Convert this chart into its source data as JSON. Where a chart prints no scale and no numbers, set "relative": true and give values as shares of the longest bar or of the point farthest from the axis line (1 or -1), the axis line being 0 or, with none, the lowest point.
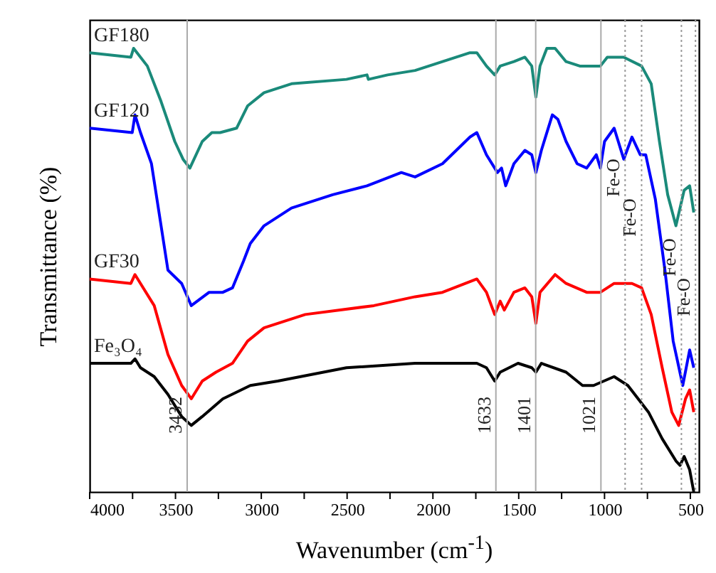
{
  "chart_data": {
    "type": "line",
    "relative": true,
    "xlabel": "Wavenumber (cm$^{-1}$)",
    "ylabel": "Transmittance (%)",
    "xlim": [
      4000,
      450
    ],
    "xticks": [
      4000,
      {
        "value": 3750,
        "label": null
      },
      3500,
      {
        "value": 3250,
        "label": null
      },
      3000,
      {
        "value": 2750,
        "label": null
      },
      2500,
      {
        "value": 2250,
        "label": null
      },
      2000,
      {
        "value": 1750,
        "label": null
      },
      1500,
      {
        "value": 1250,
        "label": null
      },
      1000,
      {
        "value": 750,
        "label": null
      },
      500
    ],
    "grid": false,
    "line_style": "solid",
    "series": [
      {
        "name": "GF180",
        "color": "#1a8a7a",
        "x": [
          4000,
          3760,
          3744,
          3664,
          3584,
          3504,
          3456,
          3416,
          3344,
          3288,
          3240,
          3144,
          3080,
          2984,
          2824,
          2504,
          2384,
          2376,
          2264,
          2104,
          1944,
          1784,
          1744,
          1688,
          1640,
          1608,
          1528,
          1464,
          1424,
          1400,
          1376,
          1336,
          1288,
          1224,
          1144,
          1064,
          1024,
          984,
          888,
          784,
          728,
          680,
          632,
          584,
          536,
          504,
          480
        ],
        "values": [
          0.99,
          0.98,
          1,
          0.96,
          0.88,
          0.79,
          0.75,
          0.73,
          0.79,
          0.81,
          0.81,
          0.82,
          0.87,
          0.9,
          0.92,
          0.93,
          0.94,
          0.93,
          0.94,
          0.95,
          0.97,
          0.99,
          0.99,
          0.96,
          0.94,
          0.96,
          0.97,
          0.98,
          0.96,
          0.89,
          0.96,
          1,
          1.0,
          0.97,
          0.96,
          0.96,
          0.96,
          0.98,
          0.98,
          0.96,
          0.92,
          0.79,
          0.67,
          0.6,
          0.68,
          0.69,
          0.63
        ]
      },
      {
        "name": "GF120",
        "color": "#0000ff",
        "x": [
          4000,
          3752,
          3736,
          3704,
          3640,
          3584,
          3544,
          3464,
          3408,
          3304,
          3224,
          3168,
          3104,
          3064,
          2984,
          2824,
          2584,
          2384,
          2184,
          2104,
          1944,
          1784,
          1744,
          1688,
          1624,
          1600,
          1576,
          1528,
          1464,
          1424,
          1400,
          1368,
          1304,
          1272,
          1224,
          1160,
          1104,
          1048,
          1024,
          1000,
          944,
          888,
          840,
          792,
          760,
          704,
          648,
          600,
          544,
          504,
          480
        ],
        "values": [
          0.82,
          0.81,
          0.85,
          0.81,
          0.74,
          0.6,
          0.5,
          0.47,
          0.42,
          0.45,
          0.45,
          0.46,
          0.52,
          0.56,
          0.6,
          0.64,
          0.67,
          0.69,
          0.72,
          0.71,
          0.74,
          0.8,
          0.81,
          0.76,
          0.72,
          0.73,
          0.69,
          0.74,
          0.77,
          0.76,
          0.72,
          0.77,
          0.85,
          0.84,
          0.79,
          0.74,
          0.73,
          0.76,
          0.73,
          0.79,
          0.82,
          0.75,
          0.8,
          0.76,
          0.76,
          0.66,
          0.5,
          0.34,
          0.24,
          0.32,
          0.28
        ]
      },
      {
        "name": "GF30",
        "color": "#ff0000",
        "x": [
          4000,
          3760,
          3736,
          3704,
          3624,
          3544,
          3464,
          3408,
          3344,
          3264,
          3168,
          3080,
          2984,
          2744,
          2344,
          2104,
          1944,
          1744,
          1688,
          1640,
          1608,
          1584,
          1528,
          1464,
          1424,
          1400,
          1376,
          1288,
          1224,
          1104,
          1024,
          944,
          840,
          784,
          728,
          664,
          608,
          568,
          528,
          504,
          480
        ],
        "values": [
          0.48,
          0.47,
          0.49,
          0.47,
          0.42,
          0.31,
          0.24,
          0.21,
          0.25,
          0.27,
          0.29,
          0.34,
          0.37,
          0.4,
          0.42,
          0.44,
          0.45,
          0.48,
          0.45,
          0.4,
          0.43,
          0.41,
          0.45,
          0.46,
          0.44,
          0.38,
          0.45,
          0.49,
          0.47,
          0.45,
          0.45,
          0.47,
          0.47,
          0.46,
          0.4,
          0.28,
          0.18,
          0.15,
          0.21,
          0.23,
          0.18
        ]
      },
      {
        "name": "Fe₃O₄",
        "color": "#000000",
        "x": [
          4000,
          3760,
          3736,
          3704,
          3624,
          3544,
          3464,
          3408,
          3344,
          3224,
          3064,
          2904,
          2504,
          2104,
          1864,
          1744,
          1688,
          1640,
          1608,
          1504,
          1424,
          1400,
          1368,
          1224,
          1128,
          1064,
          944,
          864,
          744,
          664,
          584,
          560,
          536,
          504,
          480
        ],
        "values": [
          0.29,
          0.29,
          0.3,
          0.28,
          0.26,
          0.22,
          0.17,
          0.15,
          0.17,
          0.21,
          0.24,
          0.25,
          0.28,
          0.29,
          0.29,
          0.29,
          0.28,
          0.25,
          0.27,
          0.29,
          0.28,
          0.27,
          0.29,
          0.27,
          0.24,
          0.24,
          0.26,
          0.24,
          0.18,
          0.12,
          0.07,
          0.06,
          0.08,
          0.05,
          0.0
        ]
      }
    ],
    "ref_lines": [
      {
        "axis": "x",
        "value": 3432,
        "label": "3432",
        "color": "#aaaaaa",
        "line_style": "solid"
      },
      {
        "axis": "x",
        "value": 1633,
        "label": "1633",
        "color": "#aaaaaa",
        "line_style": "solid"
      },
      {
        "axis": "x",
        "value": 1401,
        "label": "1401",
        "color": "#aaaaaa",
        "line_style": "solid"
      },
      {
        "axis": "x",
        "value": 1021,
        "label": "1021",
        "color": "#aaaaaa",
        "line_style": "solid"
      },
      {
        "axis": "x",
        "value": 880,
        "label": "Fe-O",
        "color": "#999999",
        "line_style": "dotted"
      },
      {
        "axis": "x",
        "value": 784,
        "label": "Fe-O",
        "color": "#999999",
        "line_style": "dotted"
      },
      {
        "axis": "x",
        "value": 552,
        "label": "Fe-O",
        "color": "#999999",
        "line_style": "dotted"
      },
      {
        "axis": "x",
        "value": 470,
        "label": "Fe-O",
        "color": "#999999",
        "line_style": "dotted"
      }
    ]
  }
}
